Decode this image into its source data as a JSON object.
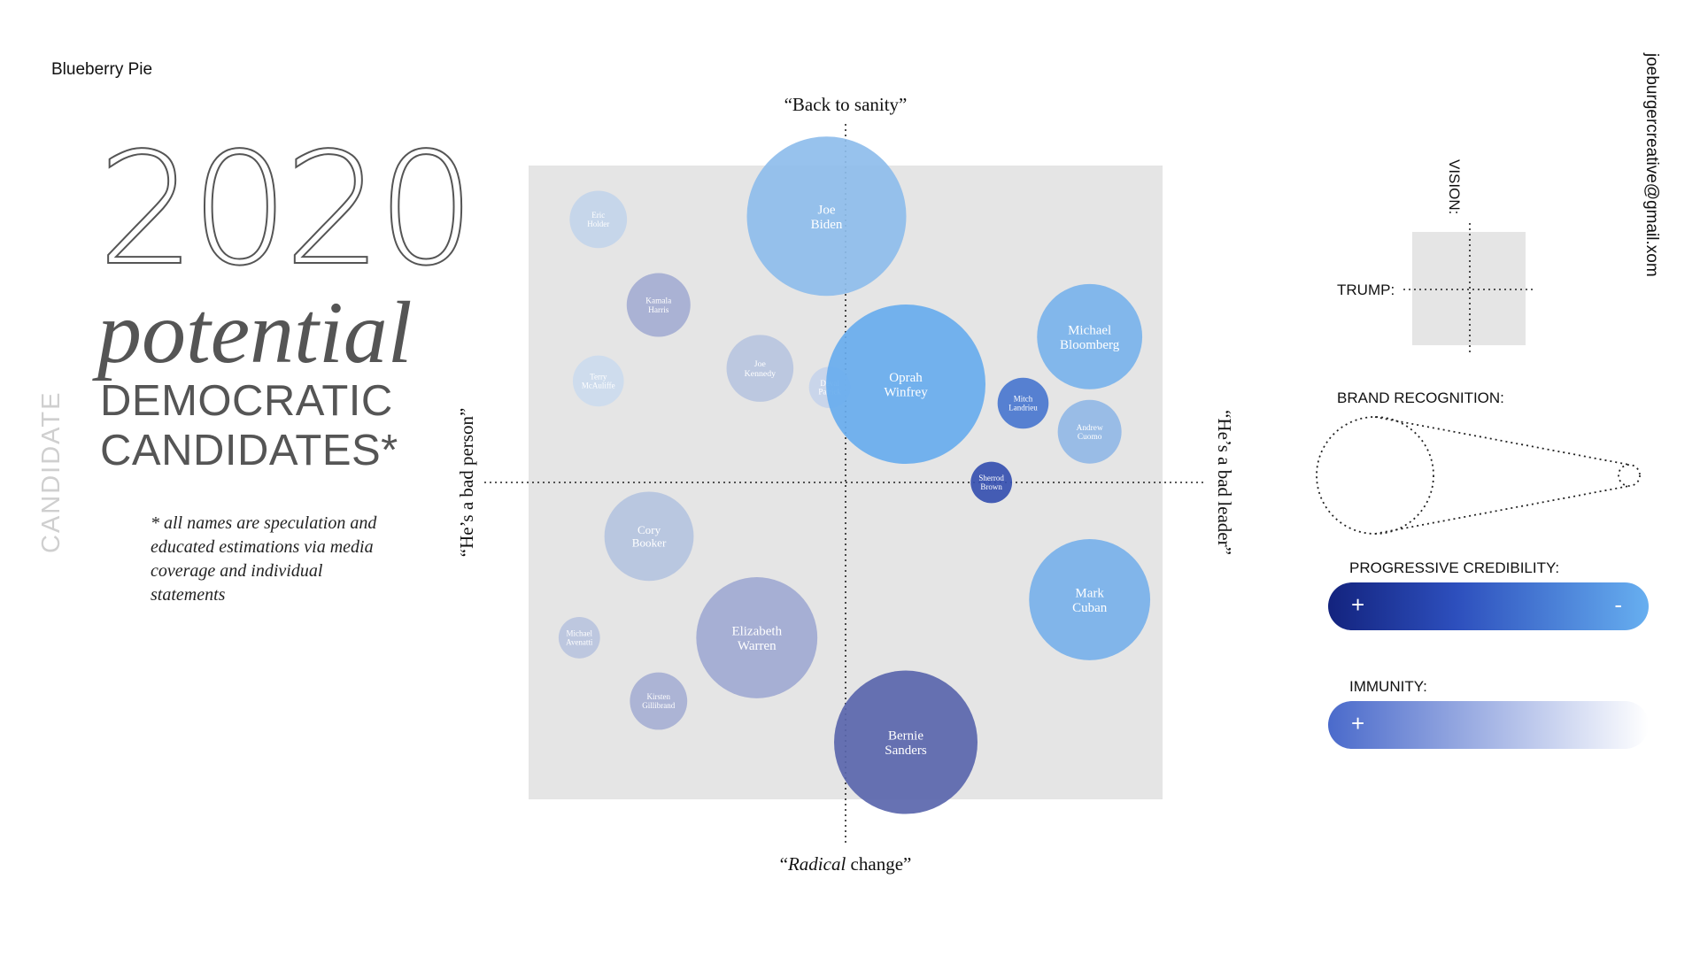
{
  "header": {
    "brand": "Blueberry Pie",
    "email": "joeburgercreative@gmail.xom"
  },
  "title": {
    "year": "2020",
    "potential": "potential",
    "line1": "DEMOCRATIC",
    "line2": "CANDIDATES*",
    "side_label": "CANDIDATE"
  },
  "footnote": "* all names are speculation and educated estimations via media coverage and individual statements",
  "chart_data": {
    "type": "scatter",
    "axes": {
      "top": "“Back to sanity”",
      "bottom_pre": "“",
      "bottom_italic": "Radical",
      "bottom_post": " change”",
      "left": "“He’s a bad person”",
      "right": "“He’s a bad leader”"
    },
    "xlim": [
      -1,
      1
    ],
    "ylim": [
      -1,
      1
    ],
    "grid": false,
    "bubbles": [
      {
        "name": "Eric Holder",
        "x": -0.78,
        "y": 0.83,
        "size": 0.18,
        "color": "#c3d5ea"
      },
      {
        "name": "Joe Biden",
        "x": -0.06,
        "y": 0.84,
        "size": 0.5,
        "color": "#8ebdec"
      },
      {
        "name": "Kamala Harris",
        "x": -0.59,
        "y": 0.56,
        "size": 0.2,
        "color": "#a5aed3"
      },
      {
        "name": "Joe Kennedy",
        "x": -0.27,
        "y": 0.36,
        "size": 0.21,
        "color": "#b9c5e0"
      },
      {
        "name": "Terry McAuliffe",
        "x": -0.78,
        "y": 0.32,
        "size": 0.16,
        "color": "#ccdbee"
      },
      {
        "name": "Deval Patrick",
        "x": -0.05,
        "y": 0.3,
        "size": 0.13,
        "color": "#c7d4ea"
      },
      {
        "name": "Oprah Winfrey",
        "x": 0.19,
        "y": 0.31,
        "size": 0.5,
        "color": "#68adee"
      },
      {
        "name": "Michael Bloomberg",
        "x": 0.77,
        "y": 0.46,
        "size": 0.33,
        "color": "#79b3ec"
      },
      {
        "name": "Mitch Landrieu",
        "x": 0.56,
        "y": 0.25,
        "size": 0.16,
        "color": "#4a77cf"
      },
      {
        "name": "Andrew Cuomo",
        "x": 0.77,
        "y": 0.16,
        "size": 0.2,
        "color": "#92b9e6"
      },
      {
        "name": "Sherrod Brown",
        "x": 0.46,
        "y": 0.0,
        "size": 0.13,
        "color": "#3650b0"
      },
      {
        "name": "Cory Booker",
        "x": -0.62,
        "y": -0.17,
        "size": 0.28,
        "color": "#b5c4df"
      },
      {
        "name": "Mark Cuban",
        "x": 0.77,
        "y": -0.37,
        "size": 0.38,
        "color": "#78b1ea"
      },
      {
        "name": "Michael Avenatti",
        "x": -0.84,
        "y": -0.49,
        "size": 0.13,
        "color": "#bac4de"
      },
      {
        "name": "Elizabeth Warren",
        "x": -0.28,
        "y": -0.49,
        "size": 0.38,
        "color": "#a1aad3"
      },
      {
        "name": "Kirsten Gillibrand",
        "x": -0.59,
        "y": -0.69,
        "size": 0.18,
        "color": "#a7b0d4"
      },
      {
        "name": "Bernie Sanders",
        "x": 0.19,
        "y": -0.82,
        "size": 0.45,
        "color": "#5a66ac"
      }
    ]
  },
  "legend": {
    "vision_label": "VISION:",
    "trump_label": "TRUMP:",
    "brand_label": "BRAND RECOGNITION:",
    "progressive_label": "PROGRESSIVE CREDIBILITY:",
    "progressive_plus": "+",
    "progressive_minus": "-",
    "immunity_label": "IMMUNITY:",
    "immunity_plus": "+"
  },
  "colors": {
    "plot_bg": "#e5e5e5",
    "progressive_start": "#13237e",
    "progressive_mid": "#2d4fbd",
    "progressive_end": "#67aff0",
    "immunity_start": "#4a6acb"
  }
}
